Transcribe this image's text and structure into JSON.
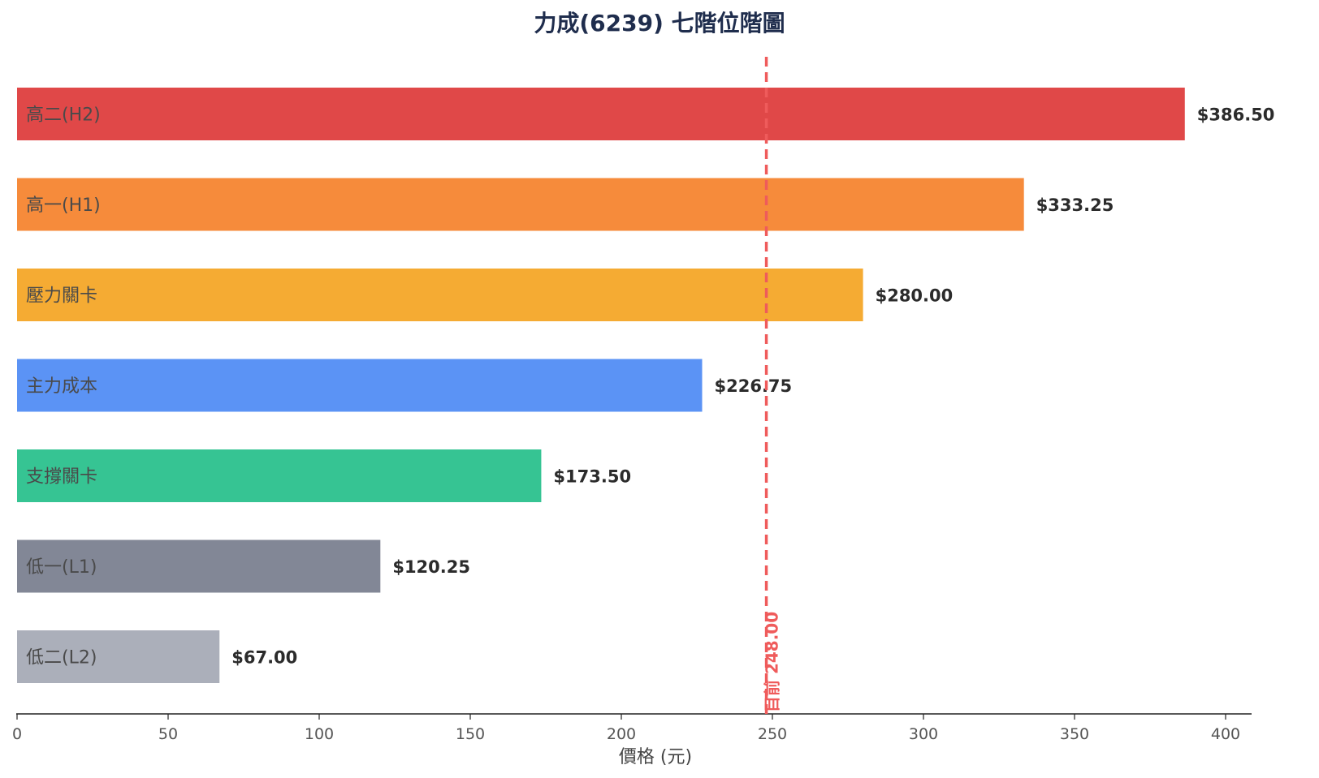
{
  "chart_data": {
    "type": "bar",
    "orientation": "horizontal",
    "title": "力成(6239) 七階位階圖",
    "xlabel": "價格 (元)",
    "ylabel": "",
    "xlim": [
      0,
      405
    ],
    "xticks": [
      0,
      50,
      100,
      150,
      200,
      250,
      300,
      350,
      400
    ],
    "grid": false,
    "categories": [
      "高二(H2)",
      "高一(H1)",
      "壓力關卡",
      "主力成本",
      "支撐關卡",
      "低一(L1)",
      "低二(L2)"
    ],
    "values": [
      386.5,
      333.25,
      280.0,
      226.75,
      173.5,
      120.25,
      67.0
    ],
    "value_labels": [
      "$386.50",
      "$333.25",
      "$280.00",
      "$226.75",
      "$173.50",
      "$120.25",
      "$67.00"
    ],
    "colors": [
      "#e04848",
      "#f68b3b",
      "#f5ab33",
      "#5b93f5",
      "#36c493",
      "#828796",
      "#abafba"
    ],
    "reference_line": {
      "value": 248.0,
      "label": "目前 248.00",
      "color": "#ef5b5b",
      "style": "dashed"
    }
  }
}
